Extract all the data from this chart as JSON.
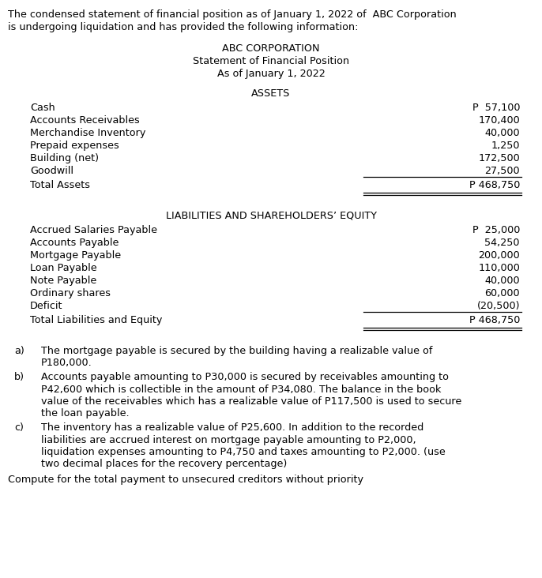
{
  "intro_line1": "The condensed statement of financial position as of January 1, 2022 of  ABC Corporation",
  "intro_line2": "is undergoing liquidation and has provided the following information:",
  "title1": "ABC CORPORATION",
  "title2": "Statement of Financial Position",
  "title3": "As of January 1, 2022",
  "assets_header": "ASSETS",
  "asset_items": [
    [
      "Cash",
      "P  57,100"
    ],
    [
      "Accounts Receivables",
      "170,400"
    ],
    [
      "Merchandise Inventory",
      "40,000"
    ],
    [
      "Prepaid expenses",
      "1,250"
    ],
    [
      "Building (net)",
      "172,500"
    ],
    [
      "Goodwill",
      "27,500"
    ]
  ],
  "asset_total_label": "Total Assets",
  "asset_total_value": "P 468,750",
  "liabilities_header": "LIABILITIES AND SHAREHOLDERS’ EQUITY",
  "liability_items": [
    [
      "Accrued Salaries Payable",
      "P  25,000"
    ],
    [
      "Accounts Payable",
      "54,250"
    ],
    [
      "Mortgage Payable",
      "200,000"
    ],
    [
      "Loan Payable",
      "110,000"
    ],
    [
      "Note Payable",
      "40,000"
    ],
    [
      "Ordinary shares",
      "60,000"
    ],
    [
      "Deficit",
      "(20,500)"
    ]
  ],
  "liability_total_label": "Total Liabilities and Equity",
  "liability_total_value": "P 468,750",
  "note_a_label": "a)",
  "note_a_lines": [
    "The mortgage payable is secured by the building having a realizable value of",
    "P180,000."
  ],
  "note_b_label": "b)",
  "note_b_lines": [
    "Accounts payable amounting to P30,000 is secured by receivables amounting to",
    "P42,600 which is collectible in the amount of P34,080. The balance in the book",
    "value of the receivables which has a realizable value of P117,500 is used to secure",
    "the loan payable."
  ],
  "note_c_label": "c)",
  "note_c_lines": [
    "The inventory has a realizable value of P25,600. In addition to the recorded",
    "liabilities are accrued interest on mortgage payable amounting to P2,000,",
    "liquidation expenses amounting to P4,750 and taxes amounting to P2,000. (use",
    "two decimal places for the recovery percentage)"
  ],
  "question": "Compute for the total payment to unsecured creditors without priority",
  "bg_color": "#ffffff",
  "text_color": "#000000",
  "font_size": 9.2,
  "font_family": "DejaVu Sans"
}
